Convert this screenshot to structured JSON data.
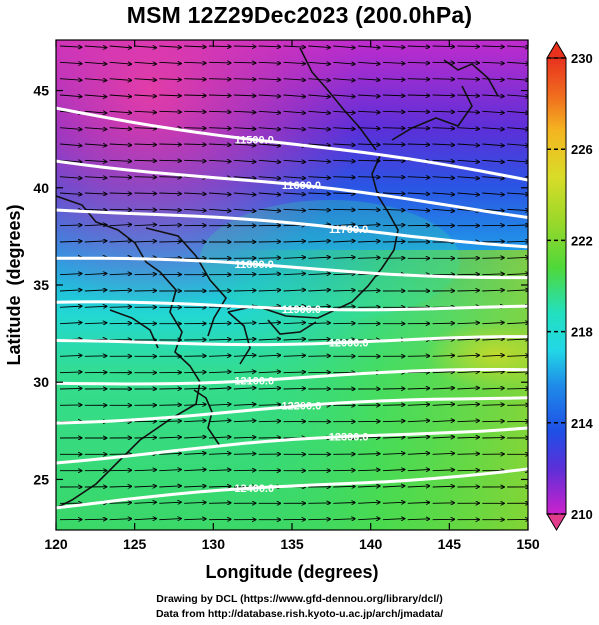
{
  "title": "MSM 12Z29Dec2023 (200.0hPa)",
  "map": {
    "x_axis": {
      "label": "Longitude (degrees)",
      "range": [
        120,
        150
      ],
      "ticks": [
        "120",
        "125",
        "130",
        "135",
        "140",
        "145",
        "150"
      ]
    },
    "y_axis": {
      "label": "Latitude  (degrees)",
      "range": [
        22.4,
        47.6
      ],
      "ticks": [
        "25",
        "30",
        "35",
        "40",
        "45"
      ]
    },
    "fill_field": "temperature",
    "vector_field": "wind",
    "contour_field": "geopotential height",
    "contours": [
      {
        "level": 11500,
        "label": "11500.0",
        "lat_left": 44.1,
        "lat_right": 40.4
      },
      {
        "level": 11600,
        "label": "11600.0",
        "lat_left": 41.5,
        "lat_right": 38.6
      },
      {
        "level": 11700,
        "label": "11700.0",
        "lat_left": 39.0,
        "lat_right": 37.1
      },
      {
        "level": 11800,
        "label": "11800.0",
        "lat_left": 36.4,
        "lat_right": 35.4
      },
      {
        "level": 11900,
        "label": "11900.0",
        "lat_left": 34.0,
        "lat_right": 33.8
      },
      {
        "level": 12000,
        "label": "12000.0",
        "lat_left": 32.0,
        "lat_right": 32.2
      },
      {
        "level": 12100,
        "label": "12100.0",
        "lat_left": 29.9,
        "lat_right": 30.6
      },
      {
        "level": 12200,
        "label": "12200.0",
        "lat_left": 28.0,
        "lat_right": 29.3
      },
      {
        "level": 12300,
        "label": "12300.0",
        "lat_left": 26.0,
        "lat_right": 27.8
      },
      {
        "level": 12400,
        "label": "12400.0",
        "lat_left": 23.6,
        "lat_right": 25.6
      }
    ]
  },
  "colorbar": {
    "min": 210,
    "max": 230,
    "labels": [
      "230",
      "226",
      "222",
      "218",
      "214",
      "210"
    ],
    "colors": [
      "#e23c8c",
      "#cc22cc",
      "#5c2fd8",
      "#1f4fe6",
      "#1fa4ea",
      "#22e0dc",
      "#2ee07a",
      "#4fd83a",
      "#9ad82a",
      "#d9dc28",
      "#f4b520",
      "#f06a1e",
      "#e8321e"
    ]
  },
  "footer": {
    "line1": "Drawing by DCL (https://www.gfd-dennou.org/library/dcl/)",
    "line2": "Data from http://database.rish.kyoto-u.ac.jp/arch/jmadata/"
  }
}
